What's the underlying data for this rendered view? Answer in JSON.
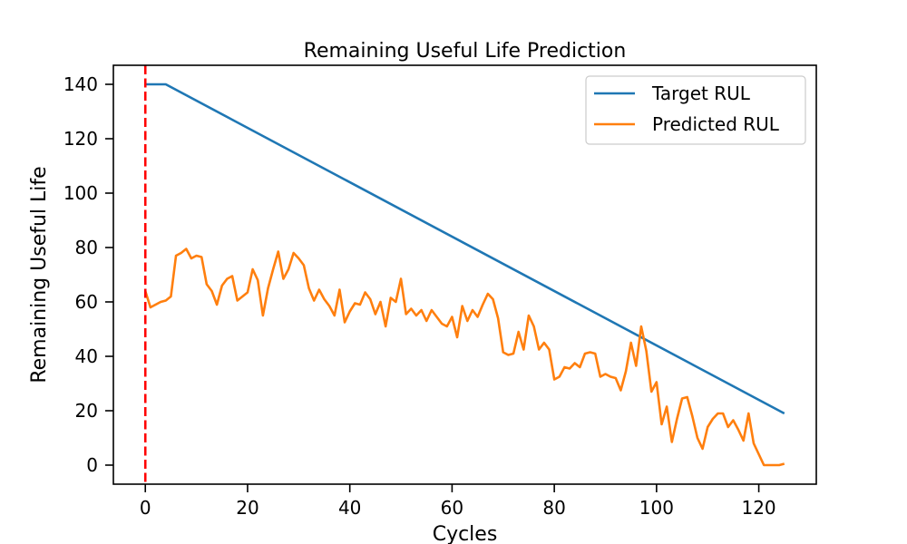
{
  "chart_data": {
    "type": "line",
    "title": "Remaining Useful Life Prediction",
    "xlabel": "Cycles",
    "ylabel": "Remaining Useful Life",
    "xlim": [
      -6.25,
      131.25
    ],
    "ylim": [
      -7,
      147
    ],
    "xticks": [
      0,
      20,
      40,
      60,
      80,
      100,
      120
    ],
    "yticks": [
      0,
      20,
      40,
      60,
      80,
      100,
      120,
      140
    ],
    "grid": false,
    "legend_position": "top-right",
    "vline": {
      "x": 0,
      "color": "#ff0000",
      "style": "dashed"
    },
    "series": [
      {
        "name": "Target RUL",
        "color": "#1f77b4",
        "x": [
          0,
          4,
          125
        ],
        "y": [
          140,
          140,
          19
        ]
      },
      {
        "name": "Predicted RUL",
        "color": "#ff7f0e",
        "x": [
          0,
          1,
          2,
          3,
          4,
          5,
          6,
          7,
          8,
          9,
          10,
          11,
          12,
          13,
          14,
          15,
          16,
          17,
          18,
          19,
          20,
          21,
          22,
          23,
          24,
          25,
          26,
          27,
          28,
          29,
          30,
          31,
          32,
          33,
          34,
          35,
          36,
          37,
          38,
          39,
          40,
          41,
          42,
          43,
          44,
          45,
          46,
          47,
          48,
          49,
          50,
          51,
          52,
          53,
          54,
          55,
          56,
          57,
          58,
          59,
          60,
          61,
          62,
          63,
          64,
          65,
          66,
          67,
          68,
          69,
          70,
          71,
          72,
          73,
          74,
          75,
          76,
          77,
          78,
          79,
          80,
          81,
          82,
          83,
          84,
          85,
          86,
          87,
          88,
          89,
          90,
          91,
          92,
          93,
          94,
          95,
          96,
          97,
          98,
          99,
          100,
          101,
          102,
          103,
          104,
          105,
          106,
          107,
          108,
          109,
          110,
          111,
          112,
          113,
          114,
          115,
          116,
          117,
          118,
          119,
          120,
          121,
          122,
          123,
          124,
          125
        ],
        "y": [
          64,
          58,
          59,
          60,
          60.5,
          62,
          77,
          78,
          79.5,
          76,
          77,
          76.5,
          66.5,
          64,
          59,
          66,
          68.5,
          69.5,
          60.5,
          62,
          63.5,
          72,
          68,
          55,
          65,
          72,
          78.5,
          68.5,
          72,
          78,
          76,
          73.5,
          65,
          60.5,
          64.5,
          61,
          58.5,
          55,
          64.5,
          52.5,
          56.5,
          59.5,
          59,
          63.5,
          61,
          55.5,
          60,
          51,
          61.5,
          60,
          68.5,
          55.5,
          57.5,
          55,
          57,
          53,
          57,
          54.5,
          52,
          51,
          54.5,
          47,
          58.5,
          53,
          57,
          54.5,
          59,
          63,
          61,
          54,
          41.5,
          40.5,
          41,
          49,
          42.5,
          55,
          51,
          42.5,
          45,
          42.5,
          31.5,
          32.5,
          36,
          35.5,
          37.5,
          36,
          41,
          41.5,
          41,
          32.5,
          33.5,
          32.5,
          32,
          27.5,
          34.5,
          45,
          36.5,
          51,
          42,
          27,
          30.5,
          15,
          21.5,
          8.5,
          17,
          24.5,
          25,
          18,
          10,
          6,
          14,
          17,
          19,
          19,
          14,
          16.5,
          13,
          9,
          19,
          8,
          4,
          0,
          0,
          0,
          0,
          0.5
        ]
      }
    ]
  }
}
